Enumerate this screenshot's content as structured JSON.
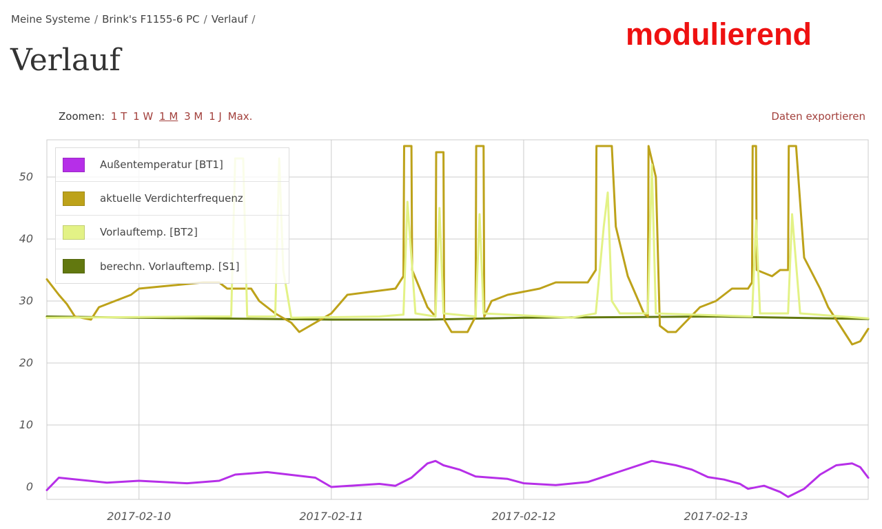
{
  "breadcrumb": {
    "item1": "Meine Systeme",
    "item2": "Brink's F1155-6 PC",
    "item3": "Verlauf",
    "sep": "/"
  },
  "page_title": "Verlauf",
  "mode_label": "modulierend",
  "zoom": {
    "label": "Zoomen:",
    "options": [
      "1 T",
      "1 W",
      "1 M",
      "3 M",
      "1 J",
      "Max."
    ],
    "active": "1 M"
  },
  "export_label": "Daten exportieren",
  "colors": {
    "outdoor": "#b62fe8",
    "compressor": "#bda21a",
    "flow": "#e3f286",
    "calc_flow": "#62780f",
    "grid": "#cccccc"
  },
  "chart_data": {
    "type": "line",
    "x_ticks": [
      "2017-02-10",
      "2017-02-11",
      "2017-02-12",
      "2017-02-13"
    ],
    "y_ticks": [
      0,
      10,
      20,
      30,
      40,
      50
    ],
    "xlim": [
      "2017-02-09 12:30",
      "2017-02-13 19:00"
    ],
    "ylim": [
      -2,
      56
    ],
    "legend_position": "top-left",
    "grid": true,
    "series": [
      {
        "name": "Außentemperatur [BT1]",
        "color_key": "outdoor",
        "points": [
          [
            "2017-02-09 12:30",
            -0.5
          ],
          [
            "2017-02-09 14:00",
            1.5
          ],
          [
            "2017-02-09 20:00",
            0.7
          ],
          [
            "2017-02-10 00:00",
            1.0
          ],
          [
            "2017-02-10 06:00",
            0.6
          ],
          [
            "2017-02-10 10:00",
            1.0
          ],
          [
            "2017-02-10 12:00",
            2.0
          ],
          [
            "2017-02-10 16:00",
            2.4
          ],
          [
            "2017-02-10 22:00",
            1.5
          ],
          [
            "2017-02-11 00:00",
            0.0
          ],
          [
            "2017-02-11 06:00",
            0.5
          ],
          [
            "2017-02-11 08:00",
            0.2
          ],
          [
            "2017-02-11 10:00",
            1.5
          ],
          [
            "2017-02-11 12:00",
            3.8
          ],
          [
            "2017-02-11 13:00",
            4.2
          ],
          [
            "2017-02-11 14:00",
            3.5
          ],
          [
            "2017-02-11 16:00",
            2.8
          ],
          [
            "2017-02-11 18:00",
            1.7
          ],
          [
            "2017-02-11 22:00",
            1.3
          ],
          [
            "2017-02-12 00:00",
            0.6
          ],
          [
            "2017-02-12 04:00",
            0.3
          ],
          [
            "2017-02-12 08:00",
            0.8
          ],
          [
            "2017-02-12 12:00",
            2.5
          ],
          [
            "2017-02-12 16:00",
            4.2
          ],
          [
            "2017-02-12 19:00",
            3.5
          ],
          [
            "2017-02-12 21:00",
            2.8
          ],
          [
            "2017-02-12 23:00",
            1.6
          ],
          [
            "2017-02-13 01:00",
            1.2
          ],
          [
            "2017-02-13 03:00",
            0.5
          ],
          [
            "2017-02-13 04:00",
            -0.3
          ],
          [
            "2017-02-13 06:00",
            0.2
          ],
          [
            "2017-02-13 08:00",
            -0.8
          ],
          [
            "2017-02-13 09:00",
            -1.6
          ],
          [
            "2017-02-13 11:00",
            -0.3
          ],
          [
            "2017-02-13 13:00",
            2.0
          ],
          [
            "2017-02-13 15:00",
            3.5
          ],
          [
            "2017-02-13 17:00",
            3.8
          ],
          [
            "2017-02-13 18:00",
            3.2
          ],
          [
            "2017-02-13 19:00",
            1.5
          ]
        ]
      },
      {
        "name": "aktuelle Verdichterfrequenz",
        "color_key": "compressor",
        "points": [
          [
            "2017-02-09 12:30",
            33.5
          ],
          [
            "2017-02-09 14:00",
            31
          ],
          [
            "2017-02-09 15:00",
            29.5
          ],
          [
            "2017-02-09 16:00",
            27.5
          ],
          [
            "2017-02-09 18:00",
            27
          ],
          [
            "2017-02-09 19:00",
            29
          ],
          [
            "2017-02-09 21:00",
            30
          ],
          [
            "2017-02-09 23:00",
            31
          ],
          [
            "2017-02-10 00:00",
            32
          ],
          [
            "2017-02-10 04:00",
            32.5
          ],
          [
            "2017-02-10 08:00",
            33
          ],
          [
            "2017-02-10 10:00",
            33
          ],
          [
            "2017-02-10 11:00",
            32
          ],
          [
            "2017-02-10 14:00",
            32
          ],
          [
            "2017-02-10 15:00",
            30
          ],
          [
            "2017-02-10 17:00",
            28
          ],
          [
            "2017-02-10 19:00",
            26.5
          ],
          [
            "2017-02-10 20:00",
            25
          ],
          [
            "2017-02-10 22:00",
            26.5
          ],
          [
            "2017-02-11 00:00",
            28
          ],
          [
            "2017-02-11 02:00",
            31
          ],
          [
            "2017-02-11 08:00",
            32
          ],
          [
            "2017-02-11 09:00",
            34
          ],
          [
            "2017-02-11 09:05",
            55
          ],
          [
            "2017-02-11 10:00",
            55
          ],
          [
            "2017-02-11 10:05",
            35
          ],
          [
            "2017-02-11 12:00",
            29
          ],
          [
            "2017-02-11 13:00",
            27.5
          ],
          [
            "2017-02-11 13:05",
            54
          ],
          [
            "2017-02-11 14:00",
            54
          ],
          [
            "2017-02-11 14:05",
            27
          ],
          [
            "2017-02-11 15:00",
            25
          ],
          [
            "2017-02-11 17:00",
            25
          ],
          [
            "2017-02-11 18:00",
            27.5
          ],
          [
            "2017-02-11 18:05",
            55
          ],
          [
            "2017-02-11 19:00",
            55
          ],
          [
            "2017-02-11 19:05",
            27.5
          ],
          [
            "2017-02-11 20:00",
            30
          ],
          [
            "2017-02-11 22:00",
            31
          ],
          [
            "2017-02-12 00:00",
            31.5
          ],
          [
            "2017-02-12 02:00",
            32
          ],
          [
            "2017-02-12 04:00",
            33
          ],
          [
            "2017-02-12 08:00",
            33
          ],
          [
            "2017-02-12 09:00",
            35
          ],
          [
            "2017-02-12 09:05",
            55
          ],
          [
            "2017-02-12 11:00",
            55
          ],
          [
            "2017-02-12 11:30",
            42
          ],
          [
            "2017-02-12 13:00",
            34
          ],
          [
            "2017-02-12 14:00",
            31
          ],
          [
            "2017-02-12 15:00",
            28
          ],
          [
            "2017-02-12 15:30",
            27.5
          ],
          [
            "2017-02-12 15:35",
            55
          ],
          [
            "2017-02-12 16:30",
            50
          ],
          [
            "2017-02-12 17:00",
            26
          ],
          [
            "2017-02-12 18:00",
            25
          ],
          [
            "2017-02-12 19:00",
            25
          ],
          [
            "2017-02-12 22:00",
            29
          ],
          [
            "2017-02-13 00:00",
            30
          ],
          [
            "2017-02-13 02:00",
            32
          ],
          [
            "2017-02-13 04:00",
            32
          ],
          [
            "2017-02-13 04:30",
            33
          ],
          [
            "2017-02-13 04:35",
            55
          ],
          [
            "2017-02-13 05:00",
            55
          ],
          [
            "2017-02-13 05:05",
            35
          ],
          [
            "2017-02-13 07:00",
            34
          ],
          [
            "2017-02-13 08:00",
            35
          ],
          [
            "2017-02-13 09:00",
            35
          ],
          [
            "2017-02-13 09:05",
            55
          ],
          [
            "2017-02-13 10:00",
            55
          ],
          [
            "2017-02-13 11:00",
            37
          ],
          [
            "2017-02-13 13:00",
            32
          ],
          [
            "2017-02-13 14:00",
            29
          ],
          [
            "2017-02-13 15:00",
            27
          ],
          [
            "2017-02-13 16:00",
            25
          ],
          [
            "2017-02-13 17:00",
            23
          ],
          [
            "2017-02-13 18:00",
            23.5
          ],
          [
            "2017-02-13 19:00",
            25.5
          ]
        ]
      },
      {
        "name": "Vorlauftemp. [BT2]",
        "color_key": "flow",
        "points": [
          [
            "2017-02-09 12:30",
            27.3
          ],
          [
            "2017-02-10 08:00",
            27.5
          ],
          [
            "2017-02-10 11:30",
            27.5
          ],
          [
            "2017-02-10 12:00",
            53
          ],
          [
            "2017-02-10 13:00",
            53
          ],
          [
            "2017-02-10 13:30",
            27.5
          ],
          [
            "2017-02-10 17:00",
            27.5
          ],
          [
            "2017-02-10 17:30",
            53
          ],
          [
            "2017-02-10 18:00",
            35
          ],
          [
            "2017-02-10 19:00",
            27.3
          ],
          [
            "2017-02-11 06:00",
            27.5
          ],
          [
            "2017-02-11 09:00",
            27.8
          ],
          [
            "2017-02-11 09:30",
            46
          ],
          [
            "2017-02-11 10:30",
            28
          ],
          [
            "2017-02-11 13:00",
            27.5
          ],
          [
            "2017-02-11 13:30",
            45
          ],
          [
            "2017-02-11 14:00",
            28
          ],
          [
            "2017-02-11 18:00",
            27.5
          ],
          [
            "2017-02-11 18:30",
            44
          ],
          [
            "2017-02-11 19:00",
            28
          ],
          [
            "2017-02-12 06:00",
            27.3
          ],
          [
            "2017-02-12 09:00",
            28
          ],
          [
            "2017-02-12 10:00",
            42
          ],
          [
            "2017-02-12 10:30",
            47.5
          ],
          [
            "2017-02-12 11:00",
            30
          ],
          [
            "2017-02-12 12:00",
            28
          ],
          [
            "2017-02-12 15:30",
            28
          ],
          [
            "2017-02-12 16:00",
            52
          ],
          [
            "2017-02-12 16:30",
            28
          ],
          [
            "2017-02-13 04:30",
            27.5
          ],
          [
            "2017-02-13 05:00",
            43
          ],
          [
            "2017-02-13 05:30",
            28
          ],
          [
            "2017-02-13 09:00",
            28
          ],
          [
            "2017-02-13 09:30",
            44
          ],
          [
            "2017-02-13 10:30",
            28
          ],
          [
            "2017-02-13 19:00",
            27.2
          ]
        ]
      },
      {
        "name": "berechn. Vorlauftemp. [S1]",
        "color_key": "calc_flow",
        "points": [
          [
            "2017-02-09 12:30",
            27.5
          ],
          [
            "2017-02-10 00:00",
            27.3
          ],
          [
            "2017-02-11 00:00",
            27.0
          ],
          [
            "2017-02-11 12:00",
            27.0
          ],
          [
            "2017-02-12 00:00",
            27.3
          ],
          [
            "2017-02-13 00:00",
            27.5
          ],
          [
            "2017-02-13 19:00",
            27.1
          ]
        ]
      }
    ]
  }
}
